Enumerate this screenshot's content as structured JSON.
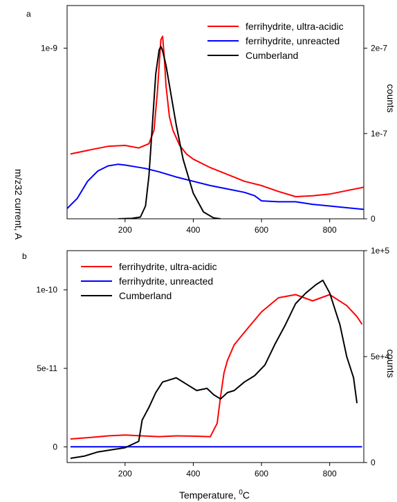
{
  "chart_data": [
    {
      "type": "line",
      "panel_label": "a",
      "xlim": [
        30,
        900
      ],
      "x_ticks": [
        200,
        400,
        600,
        800
      ],
      "y_left": {
        "lim": [
          0,
          1.25e-09
        ],
        "ticks": [
          {
            "value": 1e-09,
            "label": "1e-9"
          }
        ]
      },
      "y_right": {
        "label": "counts",
        "lim": [
          0,
          2.5e-07
        ],
        "ticks": [
          {
            "value": 0,
            "label": "0"
          },
          {
            "value": 1e-07,
            "label": "1e-7"
          },
          {
            "value": 2e-07,
            "label": "2e-7"
          }
        ]
      },
      "legend_position": "top-right",
      "series": [
        {
          "name": "ferrihydrite, ultra-acidic",
          "color": "#ff0000",
          "axis": "left",
          "x": [
            40,
            100,
            150,
            200,
            240,
            270,
            285,
            295,
            300,
            305,
            310,
            315,
            320,
            330,
            340,
            360,
            380,
            400,
            450,
            500,
            550,
            600,
            650,
            700,
            750,
            800,
            850,
            900
          ],
          "y": [
            3.8e-10,
            4.05e-10,
            4.25e-10,
            4.3e-10,
            4.15e-10,
            4.4e-10,
            5.2e-10,
            7.5e-10,
            9e-10,
            1.05e-09,
            1.07e-09,
            9.5e-10,
            7.8e-10,
            6e-10,
            5.2e-10,
            4.3e-10,
            3.8e-10,
            3.5e-10,
            3e-10,
            2.6e-10,
            2.2e-10,
            1.95e-10,
            1.6e-10,
            1.3e-10,
            1.35e-10,
            1.45e-10,
            1.65e-10,
            1.85e-10
          ]
        },
        {
          "name": "ferrihydrite, unreacted",
          "color": "#0000ff",
          "axis": "left",
          "x": [
            30,
            60,
            90,
            120,
            150,
            180,
            200,
            230,
            260,
            300,
            350,
            400,
            450,
            500,
            550,
            580,
            600,
            650,
            700,
            750,
            800,
            850,
            900
          ],
          "y": [
            6e-11,
            1.2e-10,
            2.2e-10,
            2.8e-10,
            3.1e-10,
            3.2e-10,
            3.15e-10,
            3.05e-10,
            2.95e-10,
            2.75e-10,
            2.45e-10,
            2.2e-10,
            1.95e-10,
            1.75e-10,
            1.55e-10,
            1.35e-10,
            1.05e-10,
            1e-10,
            1e-10,
            8.5e-11,
            7.5e-11,
            6.5e-11,
            5.5e-11
          ]
        },
        {
          "name": "Cumberland",
          "color": "#000000",
          "axis": "right",
          "x": [
            180,
            220,
            245,
            260,
            270,
            280,
            290,
            300,
            305,
            310,
            320,
            335,
            350,
            370,
            400,
            430,
            460,
            480
          ],
          "y": [
            0,
            5e-10,
            2e-09,
            1.5e-08,
            5e-08,
            1.1e-07,
            1.7e-07,
            1.98e-07,
            2.02e-07,
            1.97e-07,
            1.8e-07,
            1.45e-07,
            1.1e-07,
            7e-08,
            3e-08,
            8e-09,
            1e-09,
            0
          ]
        }
      ]
    },
    {
      "type": "line",
      "panel_label": "b",
      "xlabel": "Temperature, ",
      "xlabel_unit": "C",
      "xlabel_sup": "0",
      "xlim": [
        30,
        900
      ],
      "x_ticks": [
        200,
        400,
        600,
        800
      ],
      "y_left": {
        "lim": [
          -1e-11,
          1.25e-10
        ],
        "ticks": [
          {
            "value": 0,
            "label": "0"
          },
          {
            "value": 5e-11,
            "label": "5e-11"
          },
          {
            "value": 1e-10,
            "label": "1e-10"
          }
        ]
      },
      "y_right": {
        "label": "counts",
        "lim": [
          0,
          100000
        ],
        "ticks": [
          {
            "value": 0,
            "label": "0"
          },
          {
            "value": 50000,
            "label": "5e+4"
          },
          {
            "value": 100000,
            "label": "1e+5"
          }
        ]
      },
      "legend_position": "top-left",
      "series": [
        {
          "name": "ferrihydrite, ultra-acidic",
          "color": "#ff0000",
          "axis": "left",
          "x": [
            40,
            100,
            150,
            200,
            250,
            300,
            350,
            400,
            450,
            470,
            480,
            490,
            500,
            520,
            550,
            600,
            650,
            700,
            750,
            800,
            850,
            880,
            895
          ],
          "y": [
            5e-12,
            6e-12,
            7e-12,
            7.5e-12,
            7e-12,
            6.5e-12,
            7e-12,
            6.8e-12,
            6.5e-12,
            1.5e-11,
            3.2e-11,
            4.7e-11,
            5.5e-11,
            6.5e-11,
            7.3e-11,
            8.6e-11,
            9.5e-11,
            9.7e-11,
            9.3e-11,
            9.7e-11,
            9e-11,
            8.3e-11,
            7.8e-11
          ]
        },
        {
          "name": "ferrihydrite, unreacted",
          "color": "#0000ff",
          "axis": "left",
          "x": [
            40,
            200,
            400,
            600,
            800,
            895
          ],
          "y": [
            0,
            0,
            0,
            0,
            0,
            0
          ]
        },
        {
          "name": "Cumberland",
          "color": "#000000",
          "axis": "right",
          "x": [
            40,
            80,
            120,
            160,
            200,
            240,
            250,
            270,
            290,
            310,
            330,
            350,
            380,
            410,
            440,
            460,
            480,
            500,
            520,
            550,
            580,
            610,
            640,
            670,
            700,
            730,
            760,
            780,
            800,
            830,
            850,
            870,
            880
          ],
          "y": [
            2000,
            3000,
            5000,
            6000,
            7000,
            10000,
            20000,
            26000,
            33000,
            38000,
            39000,
            40000,
            37000,
            34000,
            35000,
            32000,
            30000,
            33000,
            34000,
            38000,
            41000,
            46000,
            56000,
            65000,
            75000,
            80000,
            84000,
            86000,
            80000,
            65000,
            50000,
            40000,
            28000
          ]
        }
      ]
    }
  ],
  "shared_ylabel": "m/z32 current, A"
}
